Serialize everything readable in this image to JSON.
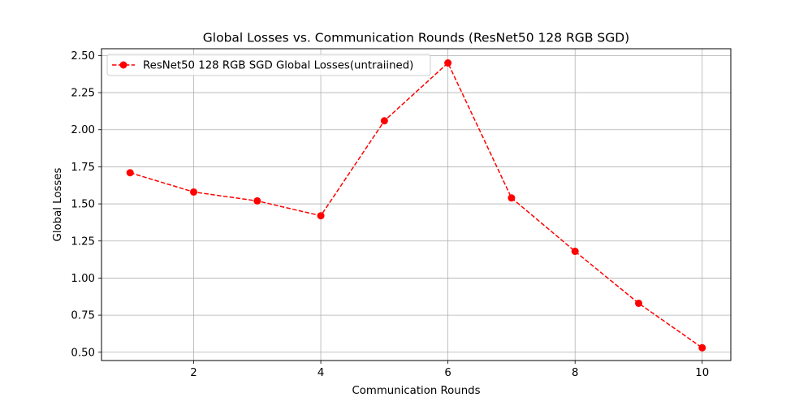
{
  "chart_data": {
    "type": "line",
    "title": "Global Losses vs. Communication Rounds (ResNet50 128 RGB SGD)",
    "xlabel": "Communication Rounds",
    "ylabel": "Global Losses",
    "xlim": [
      0.55,
      10.45
    ],
    "ylim": [
      0.444,
      2.546
    ],
    "xticks": [
      2,
      4,
      6,
      8,
      10
    ],
    "xtick_labels": [
      "2",
      "4",
      "6",
      "8",
      "10"
    ],
    "yticks": [
      0.5,
      0.75,
      1.0,
      1.25,
      1.5,
      1.75,
      2.0,
      2.25,
      2.5
    ],
    "ytick_labels": [
      "0.50",
      "0.75",
      "1.00",
      "1.25",
      "1.50",
      "1.75",
      "2.00",
      "2.25",
      "2.50"
    ],
    "grid": true,
    "legend_position": "top-left",
    "series": [
      {
        "name": "ResNet50 128 RGB SGD Global Losses(untraiined)",
        "color": "#ff0000",
        "line_style": "dashed",
        "marker": "circle",
        "x": [
          1,
          2,
          3,
          4,
          5,
          6,
          7,
          8,
          9,
          10
        ],
        "y": [
          1.71,
          1.58,
          1.52,
          1.42,
          2.06,
          2.45,
          1.54,
          1.18,
          0.83,
          0.53
        ]
      }
    ]
  }
}
